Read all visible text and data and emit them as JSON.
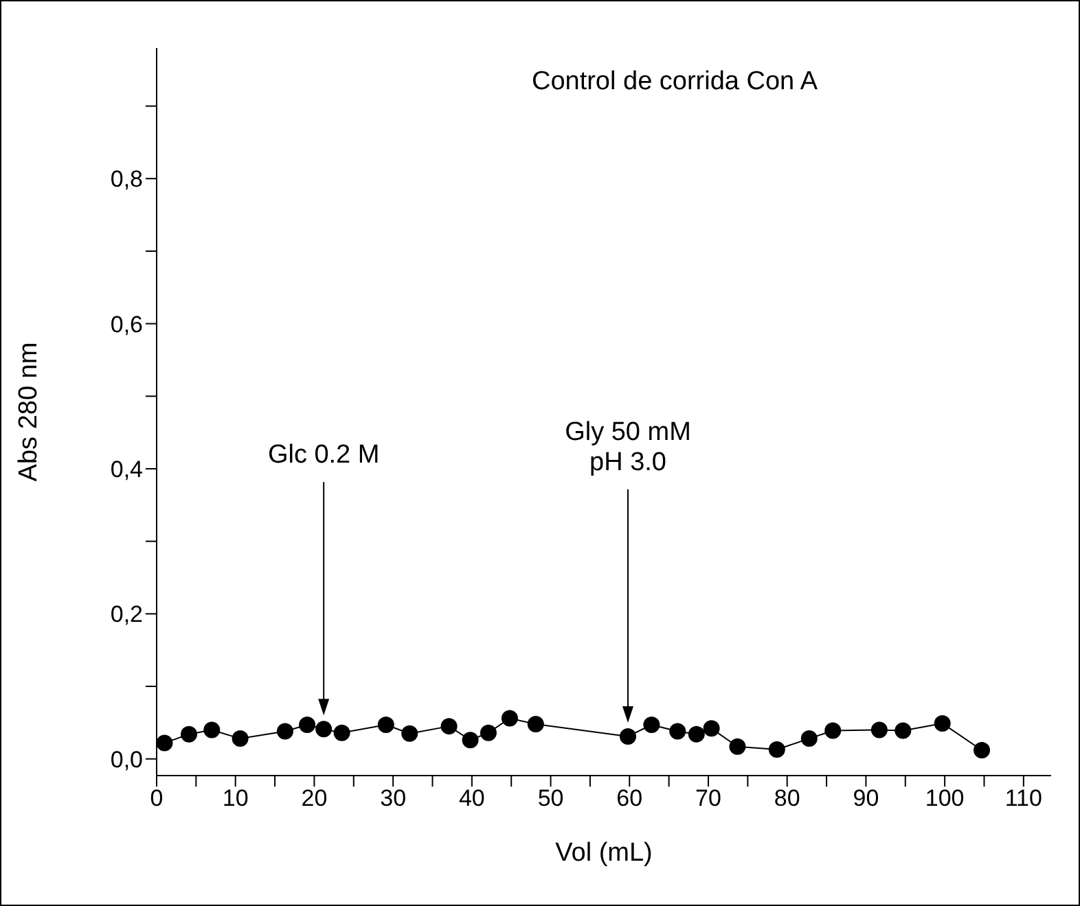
{
  "chart_data": {
    "type": "line",
    "title": "Control de corrida Con A",
    "xlabel": "Vol (mL)",
    "ylabel": "Abs 280 nm",
    "x": [
      1.0,
      4.1,
      7.0,
      10.6,
      16.3,
      19.1,
      21.2,
      23.5,
      29.1,
      32.1,
      37.1,
      39.8,
      42.1,
      44.8,
      48.1,
      59.8,
      62.8,
      66.1,
      68.5,
      70.4,
      73.7,
      78.7,
      82.8,
      85.8,
      91.7,
      94.7,
      99.7,
      104.7
    ],
    "series": [
      {
        "color": "#000000",
        "values": [
          0.022,
          0.034,
          0.04,
          0.028,
          0.038,
          0.047,
          0.041,
          0.036,
          0.047,
          0.035,
          0.045,
          0.026,
          0.036,
          0.056,
          0.048,
          0.031,
          0.047,
          0.038,
          0.034,
          0.042,
          0.017,
          0.013,
          0.028,
          0.039,
          0.04,
          0.039,
          0.049,
          0.012
        ]
      }
    ],
    "xlim": [
      0,
      113.5
    ],
    "xticks": [
      0,
      {
        "value": 5,
        "label": null
      },
      10,
      {
        "value": 15,
        "label": null
      },
      20,
      {
        "value": 25,
        "label": null
      },
      30,
      {
        "value": 35,
        "label": null
      },
      40,
      {
        "value": 45,
        "label": null
      },
      50,
      {
        "value": 55,
        "label": null
      },
      60,
      {
        "value": 65,
        "label": null
      },
      70,
      {
        "value": 75,
        "label": null
      },
      80,
      {
        "value": 85,
        "label": null
      },
      90,
      {
        "value": 95,
        "label": null
      },
      100,
      {
        "value": 105,
        "label": null
      },
      110
    ],
    "ylim": [
      -0.023,
      0.98
    ],
    "yticks": [
      {
        "value": 0,
        "label": "0,0"
      },
      {
        "value": 0.1,
        "label": null
      },
      {
        "value": 0.2,
        "label": "0,2"
      },
      {
        "value": 0.3,
        "label": null
      },
      {
        "value": 0.4,
        "label": "0,4"
      },
      {
        "value": 0.5,
        "label": null
      },
      {
        "value": 0.6,
        "label": "0,6"
      },
      {
        "value": 0.7,
        "label": null
      },
      {
        "value": 0.8,
        "label": "0,8"
      },
      {
        "value": 0.9,
        "label": null
      }
    ],
    "annotations": [
      {
        "text": "Glc 0.2 M",
        "x": 21.2
      },
      {
        "text": "Gly 50 mM\npH 3.0",
        "x": 59.8
      }
    ],
    "marker": "circle",
    "line_style": "solid",
    "grid": false,
    "legend": false
  }
}
